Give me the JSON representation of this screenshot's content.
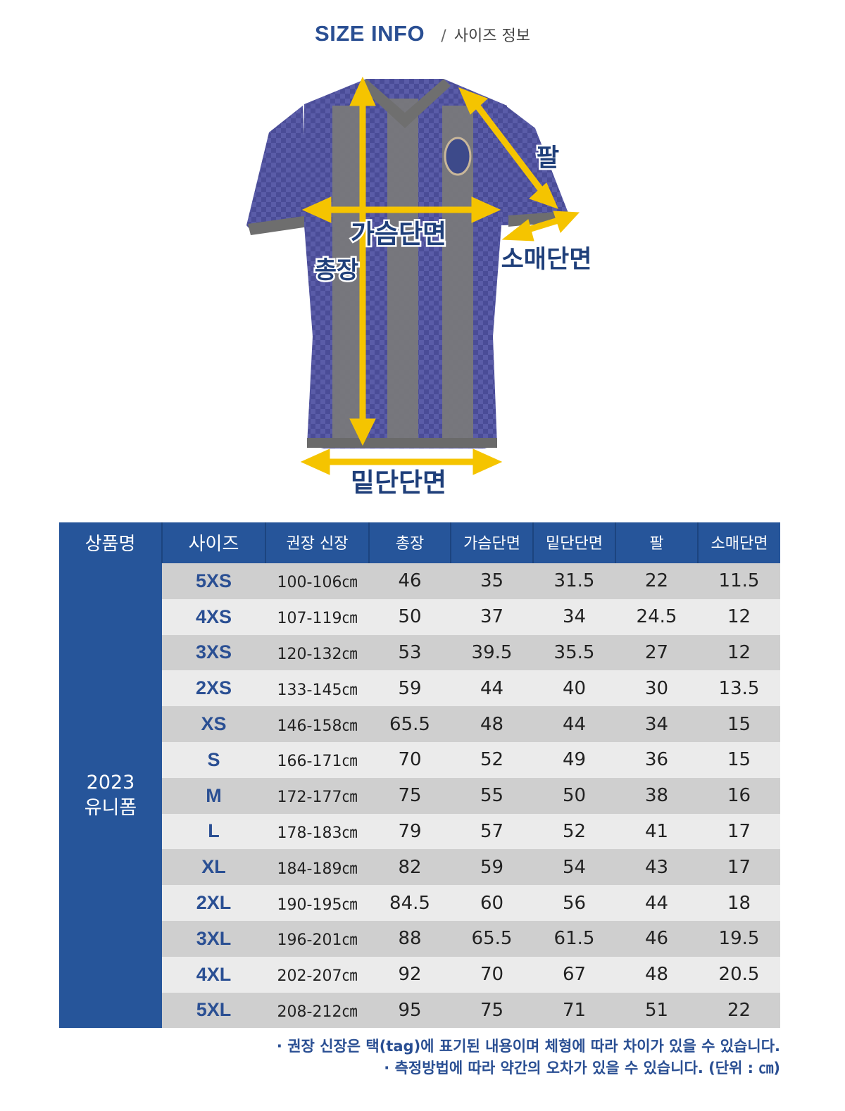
{
  "header": {
    "title_en": "SIZE INFO",
    "separator": "/",
    "title_ko": "사이즈 정보"
  },
  "diagram": {
    "labels": {
      "length": "총장",
      "chest": "가슴단면",
      "hem": "밑단단면",
      "arm": "팔",
      "sleeve": "소매단면"
    },
    "colors": {
      "arrow": "#f5c400",
      "label": "#1f3f7a",
      "jersey_navy": "#4a4c97",
      "jersey_grey": "#7a7a7a"
    }
  },
  "table": {
    "headers": [
      "상품명",
      "사이즈",
      "권장 신장",
      "총장",
      "가슴단면",
      "밑단단면",
      "팔",
      "소매단면"
    ],
    "product_line1": "2023",
    "product_line2": "유니폼",
    "rows": [
      {
        "size": "5XS",
        "height": "100-106㎝",
        "length": "46",
        "chest": "35",
        "hem": "31.5",
        "arm": "22",
        "sleeve": "11.5"
      },
      {
        "size": "4XS",
        "height": "107-119㎝",
        "length": "50",
        "chest": "37",
        "hem": "34",
        "arm": "24.5",
        "sleeve": "12"
      },
      {
        "size": "3XS",
        "height": "120-132㎝",
        "length": "53",
        "chest": "39.5",
        "hem": "35.5",
        "arm": "27",
        "sleeve": "12"
      },
      {
        "size": "2XS",
        "height": "133-145㎝",
        "length": "59",
        "chest": "44",
        "hem": "40",
        "arm": "30",
        "sleeve": "13.5"
      },
      {
        "size": "XS",
        "height": "146-158㎝",
        "length": "65.5",
        "chest": "48",
        "hem": "44",
        "arm": "34",
        "sleeve": "15"
      },
      {
        "size": "S",
        "height": "166-171㎝",
        "length": "70",
        "chest": "52",
        "hem": "49",
        "arm": "36",
        "sleeve": "15"
      },
      {
        "size": "M",
        "height": "172-177㎝",
        "length": "75",
        "chest": "55",
        "hem": "50",
        "arm": "38",
        "sleeve": "16"
      },
      {
        "size": "L",
        "height": "178-183㎝",
        "length": "79",
        "chest": "57",
        "hem": "52",
        "arm": "41",
        "sleeve": "17"
      },
      {
        "size": "XL",
        "height": "184-189㎝",
        "length": "82",
        "chest": "59",
        "hem": "54",
        "arm": "43",
        "sleeve": "17"
      },
      {
        "size": "2XL",
        "height": "190-195㎝",
        "length": "84.5",
        "chest": "60",
        "hem": "56",
        "arm": "44",
        "sleeve": "18"
      },
      {
        "size": "3XL",
        "height": "196-201㎝",
        "length": "88",
        "chest": "65.5",
        "hem": "61.5",
        "arm": "46",
        "sleeve": "19.5"
      },
      {
        "size": "4XL",
        "height": "202-207㎝",
        "length": "92",
        "chest": "70",
        "hem": "67",
        "arm": "48",
        "sleeve": "20.5"
      },
      {
        "size": "5XL",
        "height": "208-212㎝",
        "length": "95",
        "chest": "75",
        "hem": "71",
        "arm": "51",
        "sleeve": "22"
      }
    ],
    "colors": {
      "header_bg": "#26559a",
      "row_dark": "#cfcfcf",
      "row_light": "#ebebeb",
      "size_text": "#2a4f93"
    }
  },
  "notes": [
    "· 권장 신장은 택(tag)에 표기된 내용이며 체형에 따라 차이가 있을 수 있습니다.",
    "· 측정방법에 따라 약간의 오차가 있을 수 있습니다. (단위 : ㎝)"
  ]
}
